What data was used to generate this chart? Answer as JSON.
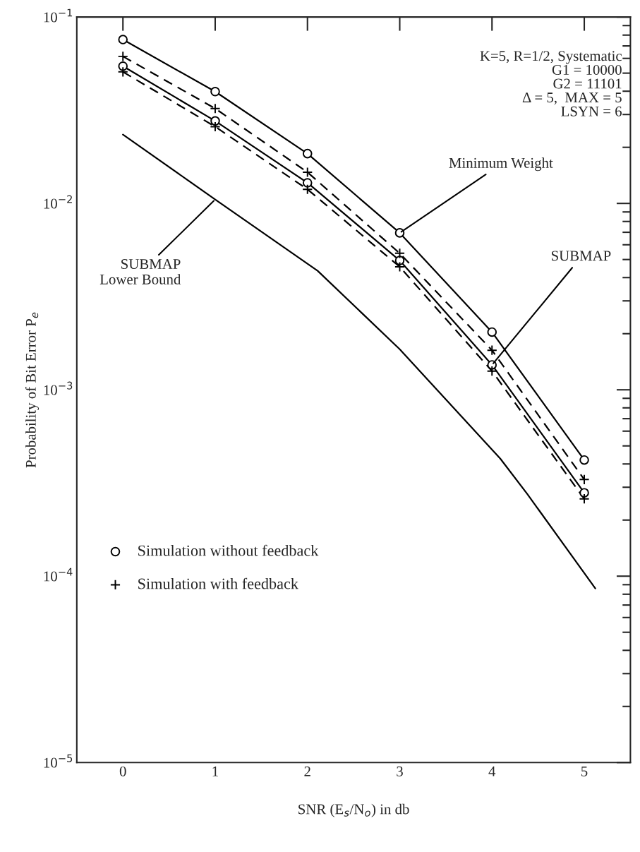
{
  "chart_data": {
    "type": "line",
    "xlabel": "SNR (E$_{s}$/N$_{o}$) in db",
    "ylabel": "Probability of Bit Error P$_{e}$",
    "log": "y",
    "grid": false,
    "legend": "bottom left",
    "xlim": [
      -0.5,
      5.5
    ],
    "xticks": [
      0,
      1,
      2,
      3,
      4,
      5
    ],
    "ylim": [
      1e-05,
      0.1
    ],
    "yticks": [
      {
        "value": 0.1,
        "label": "10$^{−1}$"
      },
      {
        "value": 0.01,
        "label": "10$^{−2}$"
      },
      {
        "value": 0.001,
        "label": "10$^{−3}$"
      },
      {
        "value": 0.0001,
        "label": "10$^{−4}$"
      },
      {
        "value": 1e-05,
        "label": "10$^{−5}$"
      }
    ],
    "series": [
      {
        "color": "#000000",
        "line_style": "solid",
        "x": [
          0,
          1,
          2,
          3,
          4,
          5
        ],
        "values": [
          0.0757,
          0.0398,
          0.0185,
          0.00695,
          0.00204,
          0.00042
        ]
      },
      {
        "color": "#000000",
        "line_style": "dashed",
        "x": [
          0,
          1,
          2,
          3,
          4,
          5
        ],
        "values": [
          0.0615,
          0.0323,
          0.0147,
          0.0054,
          0.00163,
          0.00033
        ]
      },
      {
        "color": "#000000",
        "line_style": "solid",
        "x": [
          0,
          1,
          2,
          3,
          4,
          5
        ],
        "values": [
          0.0545,
          0.0277,
          0.0129,
          0.00494,
          0.00136,
          0.00028
        ]
      },
      {
        "color": "#000000",
        "line_style": "dashed",
        "x": [
          0,
          1,
          2,
          3,
          4,
          5
        ],
        "values": [
          0.0508,
          0.0258,
          0.0119,
          0.00457,
          0.00126,
          0.00026
        ]
      },
      {
        "color": "#000000",
        "line_style": "solid",
        "x": [
          0,
          1,
          2.11,
          3,
          4.09,
          4.38,
          5.12
        ],
        "values": [
          0.0234,
          0.0105,
          0.00435,
          0.00165,
          0.000427,
          0.000277,
          8.6e-05
        ]
      },
      {
        "type": "scatter",
        "name": "Simulation without feedback",
        "color": "#000000",
        "marker": "circle",
        "x": [
          0,
          1,
          2,
          3,
          4,
          5,
          0,
          1,
          2,
          3,
          4,
          5
        ],
        "values": [
          0.0757,
          0.0398,
          0.0185,
          0.00695,
          0.00204,
          0.00042,
          0.0545,
          0.0277,
          0.0129,
          0.00494,
          0.00136,
          0.00028
        ]
      },
      {
        "type": "scatter",
        "name": "Simulation with feedback",
        "color": "#000000",
        "marker": "cross",
        "x": [
          0,
          1,
          2,
          3,
          4,
          5,
          0,
          1,
          2,
          3,
          4,
          5
        ],
        "values": [
          0.0615,
          0.0323,
          0.0147,
          0.0054,
          0.00163,
          0.00033,
          0.0508,
          0.0258,
          0.0119,
          0.00457,
          0.00126,
          0.00026
        ]
      }
    ],
    "annotations": [
      "K=5, R=1/2, Systematic\nG1 = 10000\nG2 = 11101\nΔ = 5,  MAX = 5\nLSYN = 6",
      {
        "text": "Minimum Weight",
        "x": 3,
        "y": 0.00695
      },
      {
        "text": "SUBMAP",
        "x": 4,
        "y": 0.00136
      },
      {
        "text": "SUBMAP\nLower Bound",
        "x": 1,
        "y": 0.0105
      }
    ]
  }
}
